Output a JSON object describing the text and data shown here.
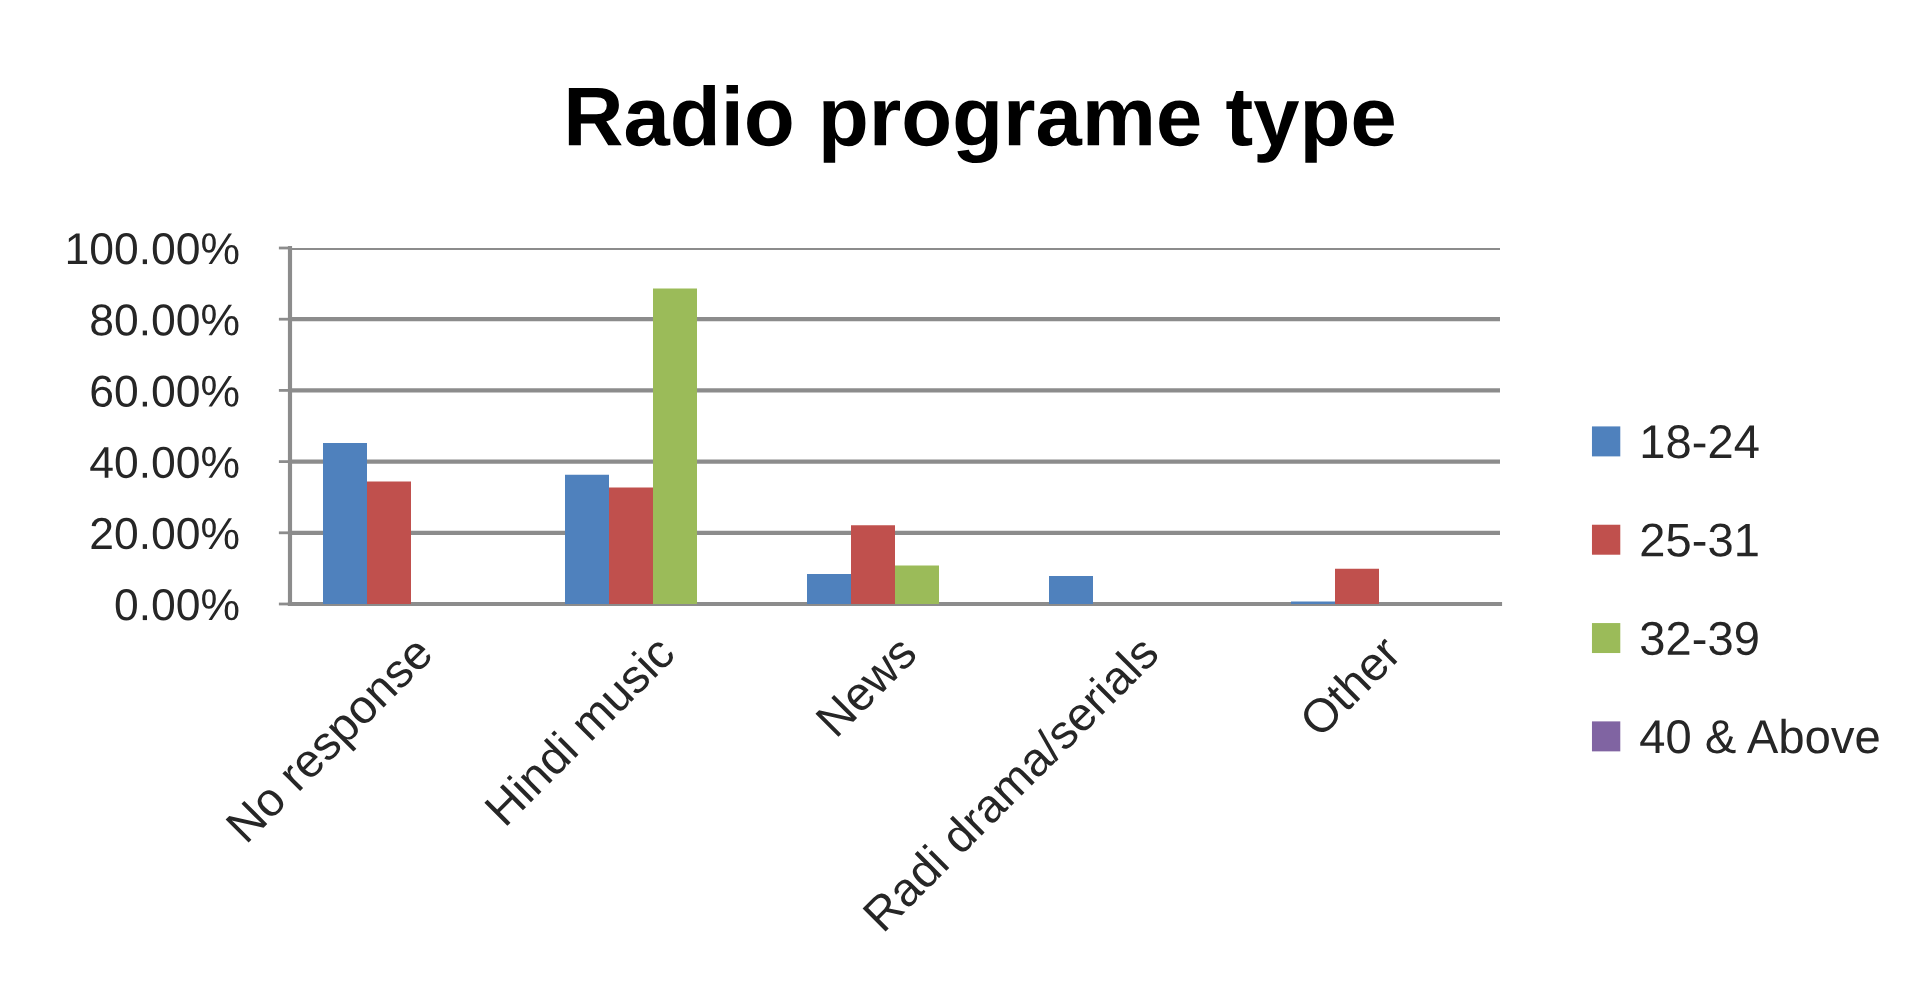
{
  "chart_data": {
    "type": "bar",
    "title": "Radio programe type",
    "categories": [
      "No response",
      "Hindi music",
      "News",
      "Radi drama/serials",
      "Other"
    ],
    "series": [
      {
        "name": "18-24",
        "color": "#4f81bd",
        "values": [
          45.2,
          36.3,
          8.4,
          7.9,
          0.7
        ]
      },
      {
        "name": "25-31",
        "color": "#c0504d",
        "values": [
          34.4,
          32.7,
          22.1,
          null,
          9.9
        ]
      },
      {
        "name": "32-39",
        "color": "#9bbb59",
        "values": [
          null,
          88.6,
          10.8,
          null,
          null
        ]
      },
      {
        "name": "40 & Above",
        "color": "#8064a2",
        "values": [
          null,
          null,
          null,
          null,
          null
        ]
      }
    ],
    "ylim": [
      0,
      100
    ],
    "yticks": [
      {
        "value": 0,
        "label": "0.00%"
      },
      {
        "value": 20,
        "label": "20.00%"
      },
      {
        "value": 40,
        "label": "40.00%"
      },
      {
        "value": 60,
        "label": "60.00%"
      },
      {
        "value": 80,
        "label": "80.00%"
      },
      {
        "value": 100,
        "label": "100.00%"
      }
    ],
    "grid": "y",
    "legend": "right"
  }
}
